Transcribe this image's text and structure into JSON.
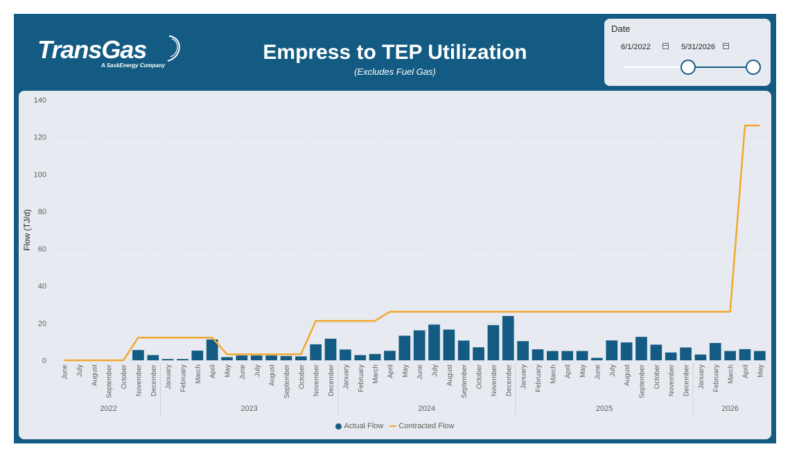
{
  "header": {
    "logo_text": "TransGas",
    "logo_tagline": "A SaskEnergy Company",
    "title": "Empress to TEP Utilization",
    "subtitle": "(Excludes Fuel Gas)"
  },
  "date_slicer": {
    "label": "Date",
    "start": "6/1/2022",
    "end": "5/31/2026",
    "start_position": 0.5,
    "end_position": 1.0
  },
  "colors": {
    "primary": "#135b82",
    "contracted": "#f2a72b",
    "panel": "#e7eaf0"
  },
  "chart_data": {
    "type": "bar",
    "ylabel": "Flow (TJ/d)",
    "xlabel": "",
    "ylim": [
      0,
      140
    ],
    "yticks": [
      0,
      20,
      40,
      60,
      80,
      100,
      120,
      140
    ],
    "grid": true,
    "legend_position": "bottom",
    "categories": [
      "June",
      "July",
      "August",
      "September",
      "October",
      "November",
      "December",
      "January",
      "February",
      "March",
      "April",
      "May",
      "June",
      "July",
      "August",
      "September",
      "October",
      "November",
      "December",
      "January",
      "February",
      "March",
      "April",
      "May",
      "June",
      "July",
      "August",
      "September",
      "October",
      "November",
      "December",
      "January",
      "February",
      "March",
      "April",
      "May",
      "June",
      "July",
      "August",
      "September",
      "October",
      "November",
      "December",
      "January",
      "February",
      "March",
      "April",
      "May"
    ],
    "years": [
      {
        "label": "2022",
        "count": 7
      },
      {
        "label": "2023",
        "count": 12
      },
      {
        "label": "2024",
        "count": 12
      },
      {
        "label": "2025",
        "count": 12
      },
      {
        "label": "2026",
        "count": 5
      }
    ],
    "series": [
      {
        "name": "Actual Flow",
        "type": "bar",
        "values": [
          0,
          0,
          0,
          0,
          0,
          5.5,
          2.8,
          0.7,
          0.7,
          5.2,
          11.2,
          1.7,
          2.6,
          2.6,
          2.6,
          2.3,
          2.1,
          8.6,
          11.6,
          5.8,
          2.8,
          3.4,
          5.1,
          13.2,
          16.1,
          19.2,
          16.5,
          10.6,
          7.0,
          18.9,
          23.8,
          10.3,
          5.9,
          5.0,
          5.0,
          5.0,
          1.3,
          10.7,
          9.6,
          12.6,
          8.4,
          4.2,
          6.9,
          3.1,
          9.3,
          5.0,
          6.0,
          5.0
        ]
      },
      {
        "name": "Contracted Flow",
        "type": "line",
        "values": [
          0,
          0,
          0,
          0,
          0,
          12.2,
          12.2,
          12.2,
          12.2,
          12.2,
          12.2,
          3.2,
          3.2,
          3.2,
          3.2,
          3.2,
          3.2,
          21.2,
          21.2,
          21.2,
          21.2,
          21.2,
          26.1,
          26.1,
          26.1,
          26.1,
          26.1,
          26.1,
          26.1,
          26.1,
          26.1,
          26.1,
          26.1,
          26.1,
          26.1,
          26.1,
          26.1,
          26.1,
          26.1,
          26.1,
          26.1,
          26.1,
          26.1,
          26.1,
          26.1,
          26.1,
          126.2,
          126.2
        ]
      }
    ]
  }
}
